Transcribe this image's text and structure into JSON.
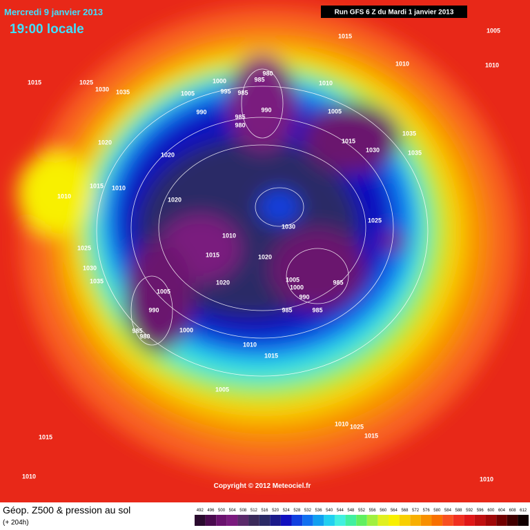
{
  "header": {
    "date": "Mercredi 9 janvier 2013",
    "time": "19:00 locale",
    "run": "Run GFS 6 Z du Mardi 1 janvier 2013"
  },
  "copyright": "Copyright © 2012 Meteociel.fr",
  "footer": {
    "title": "Géop. Z500 & pression au sol",
    "subtitle": "(+ 204h)"
  },
  "scale": {
    "labels": [
      492,
      496,
      500,
      504,
      508,
      512,
      516,
      520,
      524,
      528,
      532,
      536,
      540,
      544,
      548,
      552,
      556,
      560,
      564,
      568,
      572,
      576,
      580,
      584,
      588,
      592,
      596,
      600,
      604,
      608,
      612
    ],
    "colors": [
      "#2a0a2e",
      "#4a0a4e",
      "#6a126e",
      "#7a1a7e",
      "#5a2a6a",
      "#3a2a5a",
      "#2a2a66",
      "#1a1a8a",
      "#1010c0",
      "#1040e0",
      "#1070f0",
      "#10a0f0",
      "#20d0f0",
      "#40f0e0",
      "#40f0a0",
      "#60f060",
      "#a0f040",
      "#e0f020",
      "#f8f000",
      "#f8d000",
      "#f8b000",
      "#f89000",
      "#f87000",
      "#f85020",
      "#f03020",
      "#e01818",
      "#c01010",
      "#a00808",
      "#700000",
      "#400000",
      "#100000"
    ]
  },
  "isobar_labels": [
    "1005",
    "1015",
    "1010",
    "1010",
    "1015",
    "1025",
    "1030",
    "1035",
    "1005",
    "1000",
    "995",
    "985",
    "980",
    "985",
    "990",
    "990",
    "985",
    "980",
    "1010",
    "1005",
    "1015",
    "1030",
    "1035",
    "1035",
    "1020",
    "1020",
    "1015",
    "1010",
    "1010",
    "1020",
    "1030",
    "1025",
    "1010",
    "1015",
    "1020",
    "1025",
    "1030",
    "1035",
    "1020",
    "1005",
    "1005",
    "1000",
    "990",
    "985",
    "990",
    "985",
    "985",
    "985",
    "980",
    "1000",
    "1010",
    "1015",
    "1005",
    "1010",
    "1015",
    "1015",
    "1010",
    "1010",
    "1025"
  ]
}
